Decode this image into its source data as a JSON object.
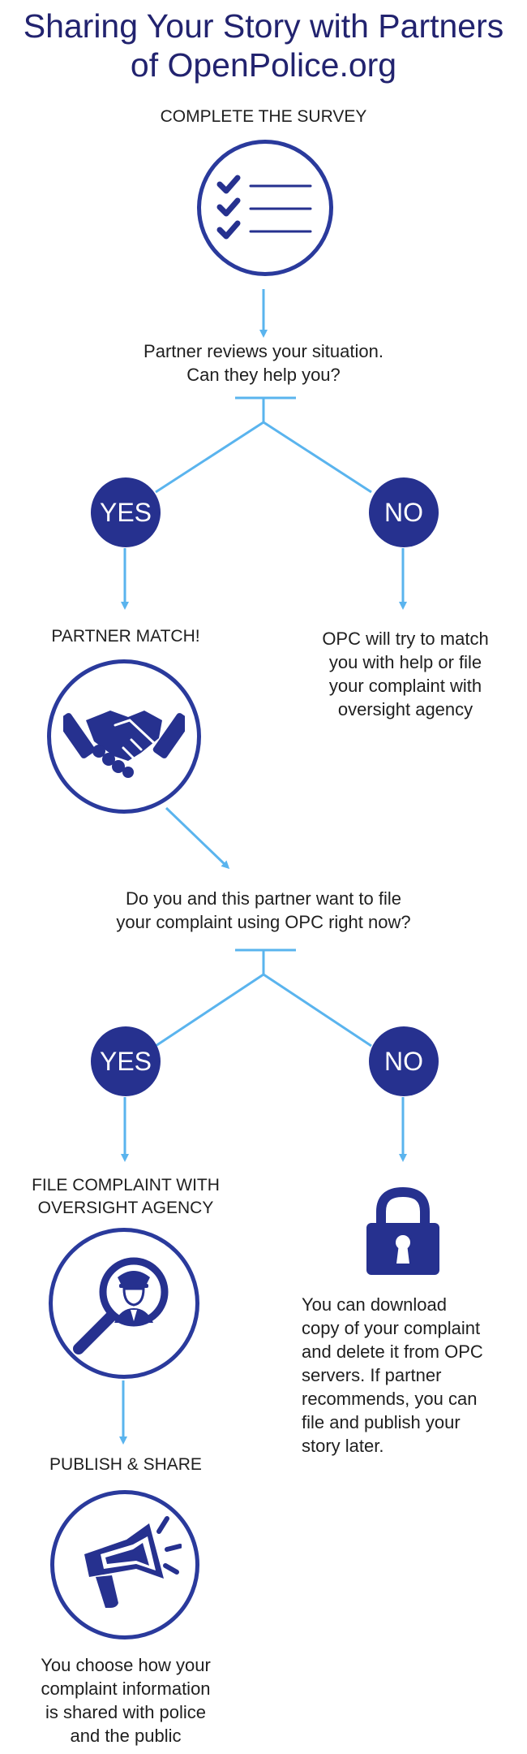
{
  "title": "Sharing Your Story with Partners of OpenPolice.org",
  "steps": {
    "survey_label": "COMPLETE THE SURVEY",
    "review_question": "Partner reviews your situation.\nCan they help you?",
    "match_label": "PARTNER MATCH!",
    "no_match_text": "OPC will try to match\nyou with help or file\nyour complaint with\noversight agency",
    "file_question": "Do you and this partner want to file\nyour complaint using OPC right now?",
    "file_label": "FILE COMPLAINT WITH\nOVERSIGHT AGENCY",
    "download_text": "You can download\ncopy of your complaint\nand delete it from OPC\nservers. If partner\nrecommends, you can\nfile and publish your\nstory later.",
    "publish_label": "PUBLISH & SHARE",
    "publish_text": "You choose how your\ncomplaint information\nis shared with police\nand the public"
  },
  "decisions": {
    "yes_1": "YES",
    "no_1": "NO",
    "yes_2": "YES",
    "no_2": "NO"
  },
  "icons": {
    "checklist": "checklist-icon",
    "handshake": "handshake-icon",
    "search_officer": "magnifier-officer-icon",
    "lock": "padlock-icon",
    "megaphone": "megaphone-icon"
  },
  "colors": {
    "title": "#22236f",
    "badge": "#26318f",
    "icon_ring": "#2a3a9c",
    "connector": "#5ab4ee"
  }
}
